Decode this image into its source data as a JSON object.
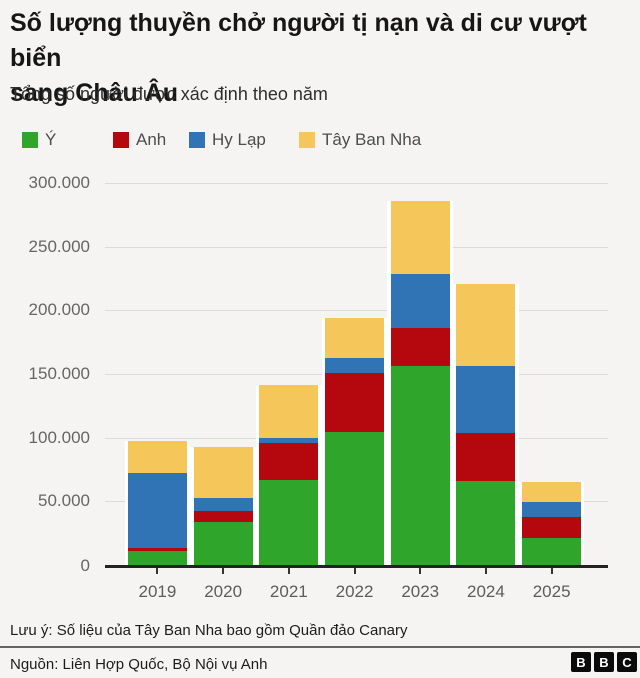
{
  "header": {
    "title_line1": "Số lượng thuyền chở người tị nạn và di cư vượt biển",
    "title_line2": "sang Châu Âu",
    "subtitle": "Tổng số người được xác định theo năm"
  },
  "colors": {
    "italy_green": "#2fa52b",
    "uk_red": "#b5070e",
    "greece_blue": "#3174b5",
    "spain_yellow": "#f5c65a",
    "background": "#f5f4f2",
    "bar_outline": "#ffffff"
  },
  "chart_data": {
    "type": "bar",
    "stacked": true,
    "categories": [
      "2019",
      "2020",
      "2021",
      "2022",
      "2023",
      "2024",
      "2025"
    ],
    "series": [
      {
        "name": "Ý",
        "color": "#2fa52b",
        "values": [
          11000,
          34000,
          67000,
          104500,
          156500,
          66000,
          21000
        ]
      },
      {
        "name": "Anh",
        "color": "#b5070e",
        "values": [
          2000,
          8500,
          28500,
          46000,
          30000,
          37500,
          16500
        ]
      },
      {
        "name": "Hy Lạp",
        "color": "#3174b5",
        "values": [
          59500,
          10000,
          4500,
          12000,
          42000,
          53000,
          12000
        ]
      },
      {
        "name": "Tây Ban Nha",
        "color": "#f5c65a",
        "values": [
          25000,
          40000,
          41000,
          31500,
          57500,
          64500,
          16000
        ]
      }
    ],
    "totals_by_year": [
      97500,
      92500,
      141000,
      194000,
      286000,
      221000,
      65500
    ],
    "title": "Số lượng thuyền chở người tị nạn và di cư vượt biển sang Châu Âu",
    "subtitle": "Tổng số người được xác định theo năm",
    "xlabel": "",
    "ylabel": "",
    "ylim": [
      0,
      300000
    ],
    "ytick_values": [
      300000,
      250000,
      200000,
      150000,
      100000,
      50000
    ],
    "ytick_labels": [
      "300.000",
      "250.000",
      "200.000",
      "150.000",
      "100.000",
      "50.000"
    ],
    "y_zero_label": "0",
    "grid": true,
    "legend_position": "top"
  },
  "footer": {
    "note": "Lưu ý: Số liệu của Tây Ban Nha bao gồm Quần đảo Canary",
    "source": "Nguồn: Liên Hợp Quốc, Bộ Nội vụ Anh",
    "logo_letters": [
      "B",
      "B",
      "C"
    ]
  }
}
